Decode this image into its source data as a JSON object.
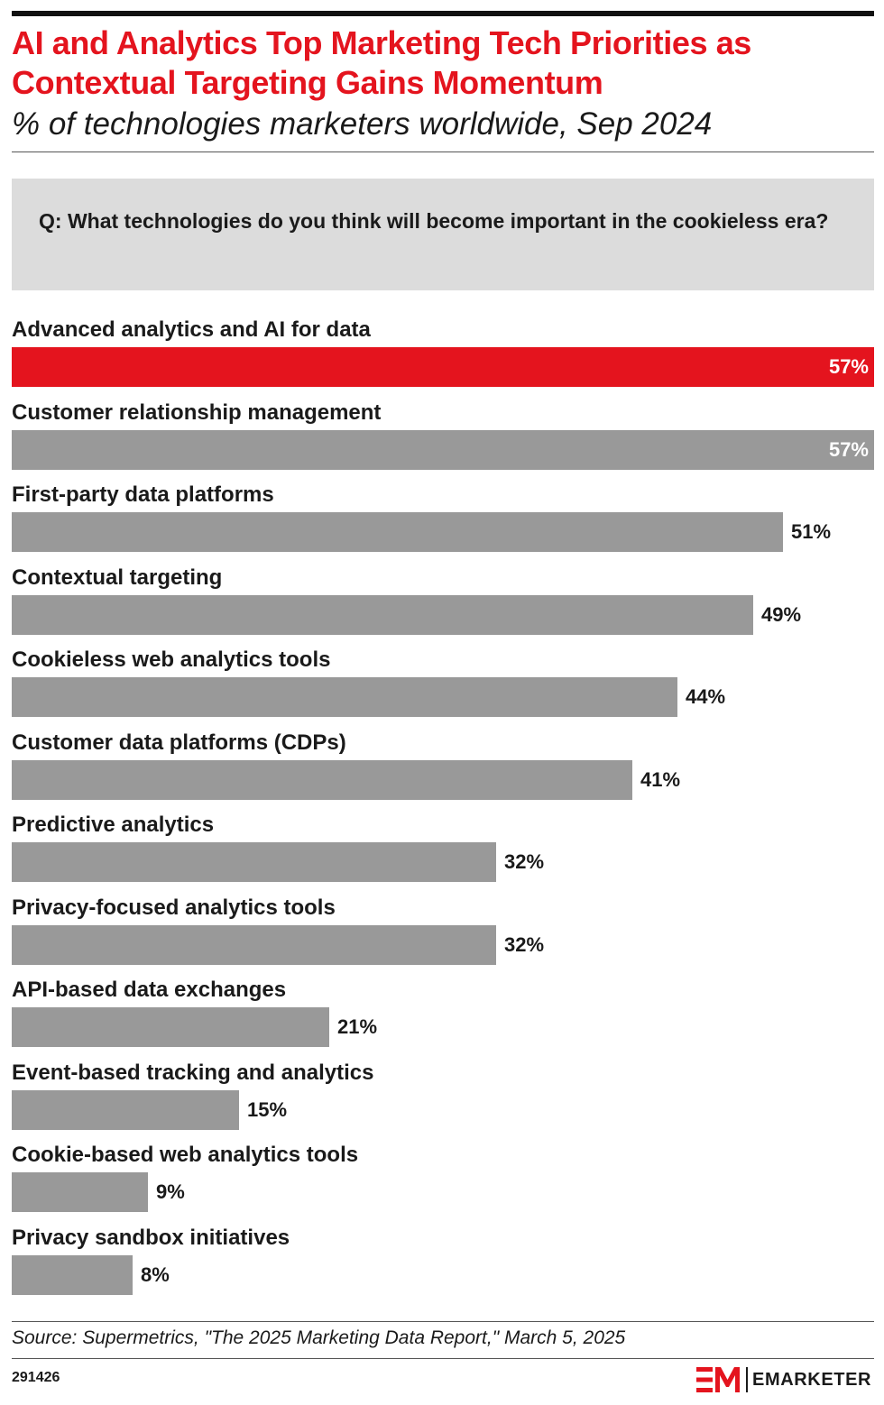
{
  "title": "AI and Analytics Top Marketing Tech Priorities as Contextual Targeting Gains Momentum",
  "subtitle": "% of technologies marketers worldwide, Sep 2024",
  "question": "Q: What technologies do you think will become important in the cookieless era?",
  "source": "Source: Supermetrics, \"The 2025 Marketing Data Report,\" March 5, 2025",
  "chart_id": "291426",
  "brand": "EMARKETER",
  "colors": {
    "accent": "#e4141e",
    "bar": "#999999",
    "question_bg": "#dcdcdc"
  },
  "chart_data": {
    "type": "bar",
    "orientation": "horizontal",
    "categories": [
      "Advanced analytics and AI for data",
      "Customer relationship management",
      "First-party data platforms",
      "Contextual targeting",
      "Cookieless web analytics tools",
      "Customer data platforms (CDPs)",
      "Predictive analytics",
      "Privacy-focused analytics tools",
      "API-based data exchanges",
      "Event-based tracking and analytics",
      "Cookie-based web analytics tools",
      "Privacy sandbox initiatives"
    ],
    "values": [
      57,
      57,
      51,
      49,
      44,
      41,
      32,
      32,
      21,
      15,
      9,
      8
    ],
    "value_labels": [
      "57%",
      "57%",
      "51%",
      "49%",
      "44%",
      "41%",
      "32%",
      "32%",
      "21%",
      "15%",
      "9%",
      "8%"
    ],
    "highlight_index": 0,
    "xlim": [
      0,
      57
    ],
    "grid": false,
    "legend": "none"
  }
}
